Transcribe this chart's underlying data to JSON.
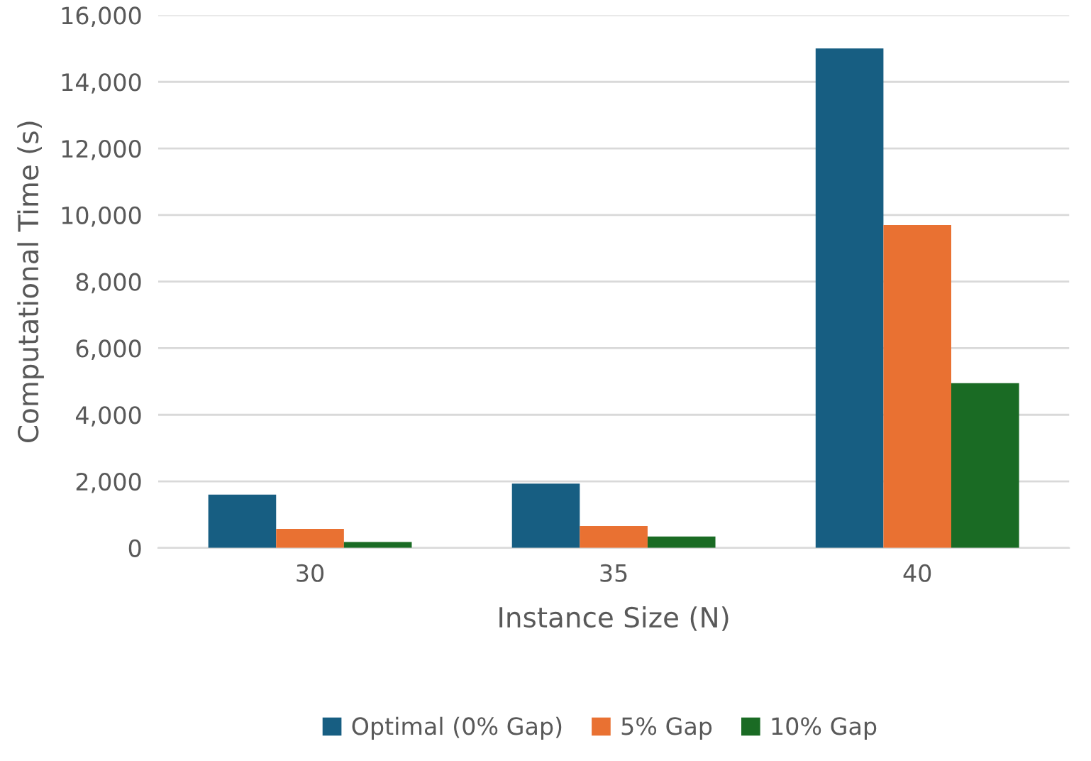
{
  "chart_data": {
    "type": "bar",
    "xlabel": "Instance Size (N)",
    "ylabel": "Computational Time (s)",
    "categories": [
      "30",
      "35",
      "40"
    ],
    "series": [
      {
        "name": "Optimal (0% Gap)",
        "color": "#175e82",
        "values": [
          1600,
          1930,
          15000
        ]
      },
      {
        "name": "5% Gap",
        "color": "#e97132",
        "values": [
          570,
          660,
          9700
        ]
      },
      {
        "name": "10% Gap",
        "color": "#1a6b24",
        "values": [
          180,
          345,
          4950
        ]
      }
    ],
    "ylim": [
      0,
      16000
    ],
    "yticks": [
      {
        "value": 0,
        "label": "0"
      },
      {
        "value": 2000,
        "label": "2,000"
      },
      {
        "value": 4000,
        "label": "4,000"
      },
      {
        "value": 6000,
        "label": "6,000"
      },
      {
        "value": 8000,
        "label": "8,000"
      },
      {
        "value": 10000,
        "label": "10,000"
      },
      {
        "value": 12000,
        "label": "12,000"
      },
      {
        "value": 14000,
        "label": "14,000"
      },
      {
        "value": 16000,
        "label": "16,000"
      }
    ],
    "grid": "y",
    "legend": "bottom"
  }
}
